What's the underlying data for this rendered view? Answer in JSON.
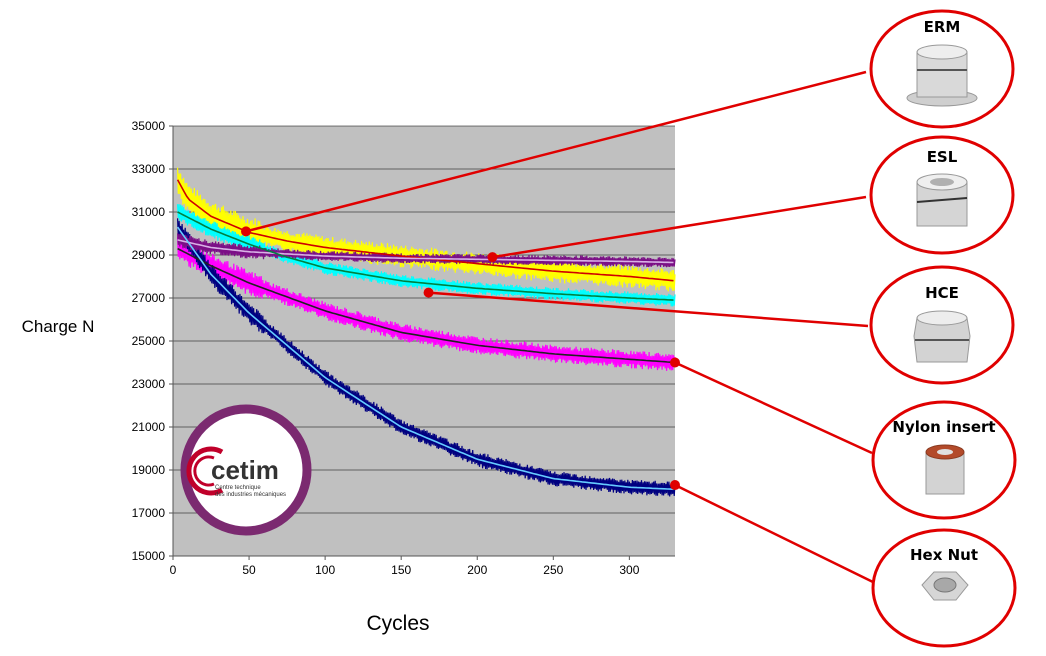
{
  "chart_data": {
    "type": "line",
    "xlabel": "Cycles",
    "ylabel": "Charge N",
    "xlim": [
      0,
      330
    ],
    "ylim": [
      15000,
      35000
    ],
    "x_ticks": [
      0,
      50,
      100,
      150,
      200,
      250,
      300
    ],
    "y_ticks": [
      15000,
      17000,
      19000,
      21000,
      23000,
      25000,
      27000,
      29000,
      31000,
      33000,
      35000
    ],
    "y_tick_labels": [
      "15000",
      "17000",
      "19000",
      "21000",
      "23000",
      "25000",
      "27000",
      "29000",
      "31000",
      "33000",
      "35000"
    ],
    "x_tick_labels": [
      "0",
      "50",
      "100",
      "150",
      "200",
      "250",
      "300"
    ],
    "grid": "horizontal",
    "series": [
      {
        "name": "ERM",
        "color": "#ffff00",
        "trend_color": "#d00000",
        "x": [
          3,
          10,
          25,
          50,
          75,
          100,
          150,
          200,
          250,
          300,
          330
        ],
        "y": [
          32500,
          31600,
          30800,
          30050,
          29650,
          29350,
          28950,
          28600,
          28250,
          28000,
          27800
        ]
      },
      {
        "name": "ESL",
        "color": "#7b0f86",
        "trend_color": "#d8b0e6",
        "x": [
          3,
          25,
          50,
          100,
          150,
          200,
          250,
          300,
          330
        ],
        "y": [
          29700,
          29350,
          29150,
          28950,
          28850,
          28800,
          28750,
          28700,
          28650
        ]
      },
      {
        "name": "HCE",
        "color": "#00ffff",
        "trend_color": "#008040",
        "x": [
          3,
          25,
          50,
          75,
          100,
          150,
          200,
          250,
          300,
          330
        ],
        "y": [
          31000,
          30200,
          29500,
          28900,
          28400,
          27800,
          27450,
          27200,
          27000,
          26900
        ]
      },
      {
        "name": "Nylon insert",
        "color": "#ff00ff",
        "trend_color": "#222222",
        "x": [
          3,
          25,
          50,
          100,
          150,
          200,
          250,
          300,
          330
        ],
        "y": [
          29300,
          28500,
          27700,
          26400,
          25400,
          24800,
          24400,
          24150,
          24000
        ]
      },
      {
        "name": "Hex Nut",
        "color": "#000080",
        "trend_color": "#66ccff",
        "x": [
          3,
          25,
          50,
          100,
          150,
          200,
          250,
          300,
          330
        ],
        "y": [
          30300,
          28100,
          26300,
          23300,
          21000,
          19500,
          18600,
          18200,
          18100
        ]
      }
    ],
    "callouts": [
      {
        "label": "ERM",
        "point": [
          48,
          30100
        ]
      },
      {
        "label": "ESL",
        "point": [
          210,
          28900
        ]
      },
      {
        "label": "HCE",
        "point": [
          168,
          27250
        ]
      },
      {
        "label": "Nylon insert",
        "point": [
          330,
          24000
        ]
      },
      {
        "label": "Hex Nut",
        "point": [
          330,
          18300
        ]
      }
    ],
    "colors": {
      "plot_bg": "#c0c0c0",
      "callout": "#e00000",
      "logo_ring": "#7b2a70",
      "logo_accent": "#c0002a"
    }
  },
  "logo": {
    "name": "cetim",
    "subtitle1": "Centre technique",
    "subtitle2": "des industries mécaniques"
  }
}
